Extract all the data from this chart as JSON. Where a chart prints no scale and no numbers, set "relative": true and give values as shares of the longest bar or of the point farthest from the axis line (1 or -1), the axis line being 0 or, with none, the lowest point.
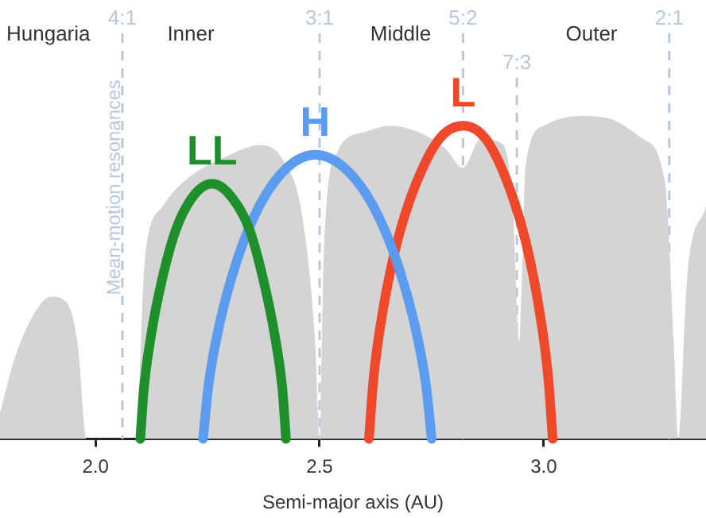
{
  "chart_data": {
    "type": "line",
    "relative": true,
    "xlabel": "Semi-major axis (AU)",
    "xlim": [
      1.787,
      3.362
    ],
    "xticks": [
      {
        "value": 2,
        "label": "2.0"
      },
      2.5,
      {
        "value": 3,
        "label": "3.0"
      }
    ],
    "grid": false,
    "legend": false,
    "marker": "none",
    "series": [
      {
        "type": "area",
        "color": "#d4d4d4",
        "x": [
          1.787,
          1.82,
          1.86,
          1.9,
          1.93,
          1.96,
          1.98,
          2.09,
          2.11,
          2.15,
          2.2,
          2.3,
          2.37,
          2.42,
          2.46,
          2.49,
          2.5,
          2.51,
          2.54,
          2.6,
          2.66,
          2.72,
          2.78,
          2.82,
          2.86,
          2.9,
          2.93,
          2.945,
          2.96,
          3.0,
          3.08,
          3.15,
          3.22,
          3.27,
          3.29,
          3.3,
          3.32,
          3.362
        ],
        "values": [
          0.08,
          0.25,
          0.38,
          0.44,
          0.43,
          0.3,
          0,
          0,
          0.55,
          0.72,
          0.8,
          0.88,
          0.91,
          0.86,
          0.7,
          0.3,
          0,
          0.6,
          0.89,
          0.95,
          0.97,
          0.95,
          0.9,
          0.84,
          0.93,
          0.92,
          0.75,
          0.3,
          0.85,
          0.97,
          1,
          0.99,
          0.93,
          0.8,
          0.3,
          0,
          0.5,
          0.72
        ]
      },
      {
        "name": "LL",
        "color": "#1f8f2b",
        "x": [
          2.1,
          2.108,
          2.124,
          2.148,
          2.18,
          2.22,
          2.26,
          2.3,
          2.343,
          2.375,
          2.4,
          2.417,
          2.425
        ],
        "values": [
          0,
          0.155,
          0.32,
          0.49,
          0.65,
          0.755,
          0.79,
          0.755,
          0.65,
          0.49,
          0.32,
          0.155,
          0
        ]
      },
      {
        "name": "H",
        "color": "#5b9cf0",
        "x": [
          2.24,
          2.2525,
          2.2775,
          2.315,
          2.365,
          2.4275,
          2.49,
          2.555,
          2.62,
          2.672,
          2.711,
          2.737,
          2.75
        ],
        "values": [
          0,
          0.17,
          0.36,
          0.55,
          0.72,
          0.84,
          0.88,
          0.84,
          0.72,
          0.55,
          0.36,
          0.17,
          0
        ]
      },
      {
        "name": "L",
        "color": "#f0482a",
        "x": [
          2.61,
          2.6205,
          2.6415,
          2.673,
          2.715,
          2.7675,
          2.82,
          2.87,
          2.92,
          2.96,
          2.99,
          3.01,
          3.02
        ],
        "values": [
          0,
          0.19,
          0.4,
          0.61,
          0.79,
          0.93,
          0.97,
          0.93,
          0.79,
          0.61,
          0.4,
          0.19,
          0
        ]
      }
    ],
    "ref_lines": [
      {
        "axis": "x",
        "value": 2.06,
        "color": "#b8c8e0",
        "line_style": "dashed"
      },
      {
        "axis": "x",
        "value": 2.5,
        "color": "#b8c8e0",
        "line_style": "dashed"
      },
      {
        "axis": "x",
        "value": 2.82,
        "color": "#b8c8e0",
        "line_style": "dashed"
      },
      {
        "axis": "x",
        "value": 2.94,
        "color": "#b8c8e0",
        "line_style": "dashed"
      },
      {
        "axis": "x",
        "value": 3.28,
        "color": "#b8c8e0",
        "line_style": "dashed"
      }
    ],
    "annotations": [
      "Hungaria",
      "Inner",
      "Middle",
      "Outer",
      "Mean-motion resonances",
      "4:1",
      "3:1",
      "5:2",
      "7:3",
      "2:1"
    ]
  }
}
